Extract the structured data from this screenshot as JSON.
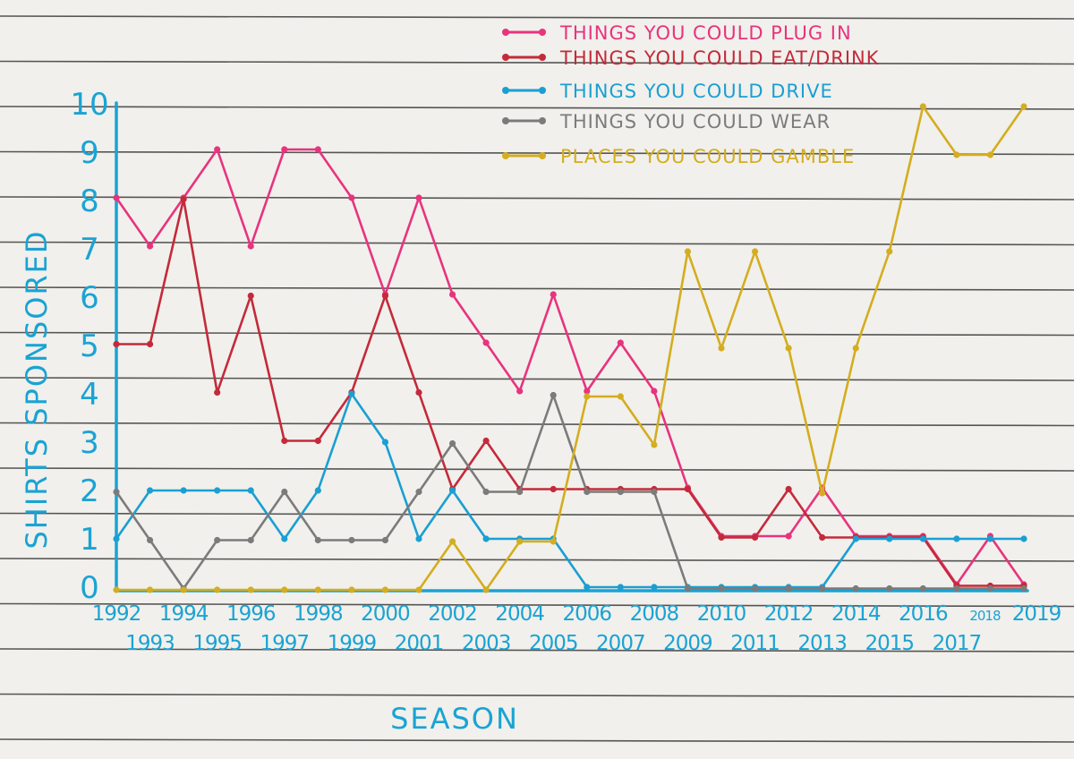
{
  "chart_data": {
    "type": "line",
    "title": "",
    "xlabel": "SEASON",
    "ylabel": "SHIRTS SPONSORED",
    "ylim": [
      0,
      10
    ],
    "y_ticks": [
      0,
      1,
      2,
      3,
      4,
      5,
      6,
      7,
      8,
      9,
      10
    ],
    "x_upper_labels": [
      "1992",
      "1994",
      "1996",
      "1998",
      "2000",
      "2002",
      "2004",
      "2006",
      "2008",
      "2010",
      "2012",
      "2014",
      "2016",
      "2018",
      "2019"
    ],
    "x_lower_labels": [
      "1993",
      "1995",
      "1997",
      "1999",
      "2001",
      "2003",
      "2005",
      "2007",
      "2009",
      "2011",
      "2013",
      "2015",
      "2017"
    ],
    "x": [
      1992,
      1993,
      1994,
      1995,
      1996,
      1997,
      1998,
      1999,
      2000,
      2001,
      2002,
      2003,
      2004,
      2005,
      2006,
      2007,
      2008,
      2009,
      2010,
      2011,
      2012,
      2013,
      2014,
      2015,
      2016,
      2017,
      2018,
      2019
    ],
    "grid": "ruled horizontal lines",
    "legend_position": "top-right",
    "series": [
      {
        "name": "THINGS YOU COULD PLUG IN",
        "color": "#e8337e",
        "values": [
          8,
          7,
          8,
          9,
          7,
          9,
          9,
          8,
          6,
          8,
          6,
          5,
          4,
          6,
          4,
          5,
          4,
          2,
          1,
          1,
          1,
          2,
          1,
          1,
          1,
          0,
          1,
          0
        ]
      },
      {
        "name": "THINGS YOU COULD EAT/DRINK",
        "color": "#c42a3a",
        "values": [
          5,
          5,
          8,
          4,
          6,
          3,
          3,
          4,
          6,
          4,
          2,
          3,
          2,
          2,
          2,
          2,
          2,
          2,
          1,
          1,
          2,
          1,
          1,
          1,
          1,
          0,
          0,
          0
        ]
      },
      {
        "name": "THINGS YOU COULD DRIVE",
        "color": "#1a9fd2",
        "values": [
          1,
          2,
          2,
          2,
          2,
          1,
          2,
          4,
          3,
          1,
          2,
          1,
          1,
          1,
          0,
          0,
          0,
          0,
          0,
          0,
          0,
          0,
          1,
          1,
          1,
          1,
          1,
          1
        ]
      },
      {
        "name": "THINGS YOU COULD WEAR",
        "color": "#7b7b7b",
        "values": [
          2,
          1,
          0,
          1,
          1,
          2,
          1,
          1,
          1,
          2,
          3,
          2,
          2,
          4,
          2,
          2,
          2,
          0,
          0,
          0,
          0,
          0,
          0,
          0,
          0,
          0,
          0,
          0
        ]
      },
      {
        "name": "PLACES YOU COULD GAMBLE",
        "color": "#d4ad20",
        "values": [
          0,
          0,
          0,
          0,
          0,
          0,
          0,
          0,
          0,
          0,
          1,
          0,
          1,
          1,
          4,
          4,
          3,
          7,
          5,
          7,
          5,
          2,
          5,
          7,
          10,
          9,
          9,
          10
        ]
      }
    ]
  }
}
